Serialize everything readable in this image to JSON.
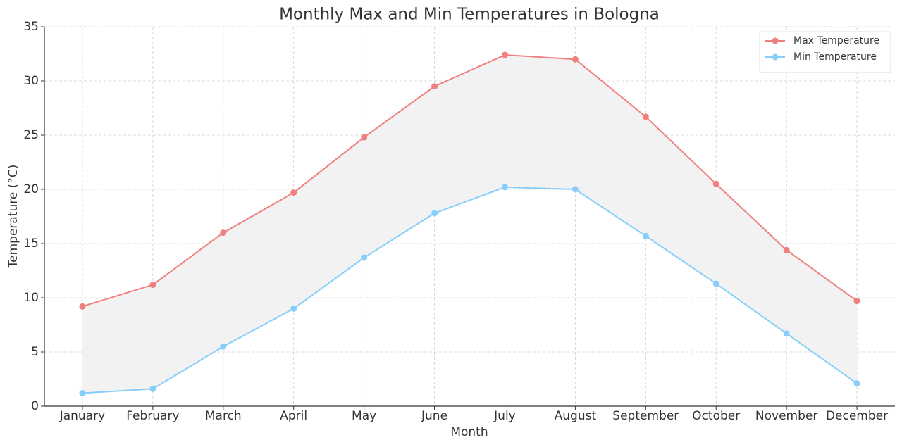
{
  "chart_data": {
    "type": "line",
    "title": "Monthly Max and Min Temperatures in Bologna",
    "x_label": "Month",
    "y_label": "Temperature (°C)",
    "categories": [
      "January",
      "February",
      "March",
      "April",
      "May",
      "June",
      "July",
      "August",
      "September",
      "October",
      "November",
      "December"
    ],
    "series": [
      {
        "name": "Max Temperature",
        "color": "#f08080",
        "values": [
          9.2,
          11.2,
          16.0,
          19.7,
          24.8,
          29.5,
          32.4,
          32.0,
          26.7,
          20.5,
          14.4,
          9.7
        ]
      },
      {
        "name": "Min Temperature",
        "color": "#87cefa",
        "values": [
          1.2,
          1.6,
          5.5,
          9.0,
          13.7,
          17.8,
          20.2,
          20.0,
          15.7,
          11.3,
          6.7,
          2.1
        ]
      }
    ],
    "fill_between": "#f2f2f2",
    "ylim": [
      0,
      35
    ],
    "yticks": [
      0,
      5,
      10,
      15,
      20,
      25,
      30,
      35
    ],
    "grid": true,
    "legend": "upper right"
  }
}
